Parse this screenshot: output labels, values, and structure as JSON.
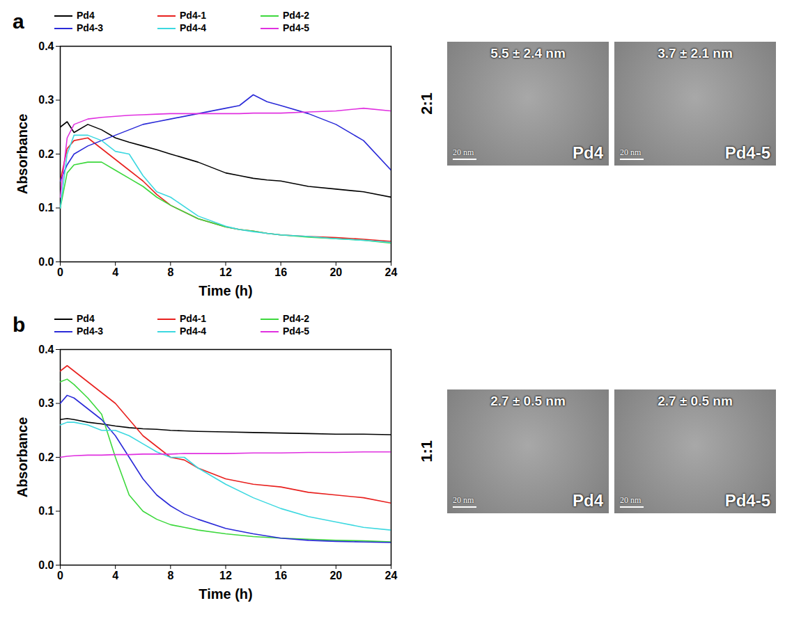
{
  "chart_data": [
    {
      "type": "line",
      "panel": "a",
      "x_label": "Time (h)",
      "y_label": "Absorbance",
      "legend": "top",
      "x": [
        0,
        0.5,
        1,
        2,
        3,
        4,
        5,
        6,
        7,
        8,
        10,
        12,
        13,
        14,
        15,
        16,
        18,
        20,
        22,
        24
      ],
      "xlim": [
        0,
        24
      ],
      "xticks": [
        0,
        4,
        8,
        12,
        16,
        20,
        24
      ],
      "ylim": [
        0,
        0.4
      ],
      "yticks": [
        {
          "value": 0,
          "label": "0.0"
        },
        0.1,
        0.2,
        0.3,
        0.4
      ],
      "series": [
        {
          "name": "Pd4",
          "color": "#000000",
          "values": [
            0.25,
            0.26,
            0.24,
            0.255,
            0.245,
            0.23,
            0.222,
            0.215,
            0.208,
            0.2,
            0.185,
            0.165,
            0.16,
            0.155,
            0.152,
            0.15,
            0.14,
            0.135,
            0.13,
            0.12
          ]
        },
        {
          "name": "Pd4-1",
          "color": "#e8201e",
          "values": [
            0.15,
            0.21,
            0.225,
            0.23,
            0.21,
            0.19,
            0.17,
            0.15,
            0.125,
            0.105,
            0.08,
            0.065,
            0.06,
            0.057,
            0.053,
            0.05,
            0.047,
            0.045,
            0.042,
            0.038
          ]
        },
        {
          "name": "Pd4-2",
          "color": "#3cd83c",
          "values": [
            0.1,
            0.165,
            0.18,
            0.185,
            0.185,
            0.17,
            0.155,
            0.14,
            0.12,
            0.105,
            0.08,
            0.065,
            0.06,
            0.057,
            0.053,
            0.05,
            0.046,
            0.043,
            0.04,
            0.035
          ]
        },
        {
          "name": "Pd4-3",
          "color": "#2a2ad8",
          "values": [
            0.15,
            0.18,
            0.2,
            0.215,
            0.225,
            0.235,
            0.245,
            0.255,
            0.26,
            0.265,
            0.275,
            0.285,
            0.29,
            0.31,
            0.297,
            0.29,
            0.275,
            0.255,
            0.225,
            0.17
          ]
        },
        {
          "name": "Pd4-4",
          "color": "#3cd8e0",
          "values": [
            0.1,
            0.2,
            0.235,
            0.235,
            0.225,
            0.205,
            0.2,
            0.16,
            0.13,
            0.12,
            0.085,
            0.066,
            0.06,
            0.056,
            0.053,
            0.05,
            0.047,
            0.043,
            0.04,
            0.036
          ]
        },
        {
          "name": "Pd4-5",
          "color": "#e030e0",
          "values": [
            0.12,
            0.23,
            0.255,
            0.265,
            0.268,
            0.27,
            0.272,
            0.273,
            0.274,
            0.275,
            0.275,
            0.275,
            0.275,
            0.276,
            0.276,
            0.276,
            0.278,
            0.28,
            0.285,
            0.28
          ]
        }
      ]
    },
    {
      "type": "line",
      "panel": "b",
      "x_label": "Time (h)",
      "y_label": "Absorbance",
      "legend": "top",
      "x": [
        0,
        0.5,
        1,
        2,
        3,
        4,
        5,
        6,
        7,
        8,
        9,
        10,
        12,
        14,
        16,
        18,
        20,
        22,
        24
      ],
      "xlim": [
        0,
        24
      ],
      "xticks": [
        0,
        4,
        8,
        12,
        16,
        20,
        24
      ],
      "ylim": [
        0,
        0.4
      ],
      "yticks": [
        {
          "value": 0,
          "label": "0.0"
        },
        0.1,
        0.2,
        0.3,
        0.4
      ],
      "series": [
        {
          "name": "Pd4",
          "color": "#000000",
          "values": [
            0.27,
            0.272,
            0.27,
            0.265,
            0.262,
            0.258,
            0.255,
            0.253,
            0.252,
            0.25,
            0.249,
            0.248,
            0.247,
            0.246,
            0.245,
            0.244,
            0.243,
            0.243,
            0.242
          ]
        },
        {
          "name": "Pd4-1",
          "color": "#e8201e",
          "values": [
            0.36,
            0.37,
            0.36,
            0.34,
            0.32,
            0.3,
            0.27,
            0.24,
            0.22,
            0.2,
            0.195,
            0.18,
            0.16,
            0.15,
            0.145,
            0.135,
            0.13,
            0.125,
            0.115
          ]
        },
        {
          "name": "Pd4-2",
          "color": "#3cd83c",
          "values": [
            0.34,
            0.345,
            0.335,
            0.31,
            0.28,
            0.2,
            0.13,
            0.1,
            0.085,
            0.075,
            0.07,
            0.065,
            0.058,
            0.053,
            0.05,
            0.048,
            0.046,
            0.045,
            0.043
          ]
        },
        {
          "name": "Pd4-3",
          "color": "#2a2ad8",
          "values": [
            0.3,
            0.315,
            0.31,
            0.29,
            0.27,
            0.24,
            0.2,
            0.16,
            0.13,
            0.11,
            0.095,
            0.085,
            0.068,
            0.058,
            0.05,
            0.046,
            0.044,
            0.043,
            0.042
          ]
        },
        {
          "name": "Pd4-4",
          "color": "#3cd8e0",
          "values": [
            0.26,
            0.265,
            0.265,
            0.26,
            0.25,
            0.25,
            0.24,
            0.225,
            0.21,
            0.2,
            0.2,
            0.18,
            0.15,
            0.125,
            0.105,
            0.09,
            0.08,
            0.07,
            0.065
          ]
        },
        {
          "name": "Pd4-5",
          "color": "#e030e0",
          "values": [
            0.2,
            0.202,
            0.203,
            0.204,
            0.204,
            0.205,
            0.205,
            0.206,
            0.206,
            0.206,
            0.207,
            0.207,
            0.207,
            0.208,
            0.208,
            0.209,
            0.209,
            0.21,
            0.21
          ]
        }
      ]
    }
  ],
  "images": [
    {
      "row_label": "2:1",
      "panels": [
        {
          "label": "Pd4",
          "size": "5.5 ± 2.4 nm",
          "scale_bar": "20 nm"
        },
        {
          "label": "Pd4-5",
          "size": "3.7 ± 2.1 nm",
          "scale_bar": "20 nm"
        }
      ]
    },
    {
      "row_label": "1:1",
      "panels": [
        {
          "label": "Pd4",
          "size": "2.7 ± 0.5 nm",
          "scale_bar": "20 nm"
        },
        {
          "label": "Pd4-5",
          "size": "2.7 ± 0.5 nm",
          "scale_bar": "20 nm"
        }
      ]
    }
  ]
}
